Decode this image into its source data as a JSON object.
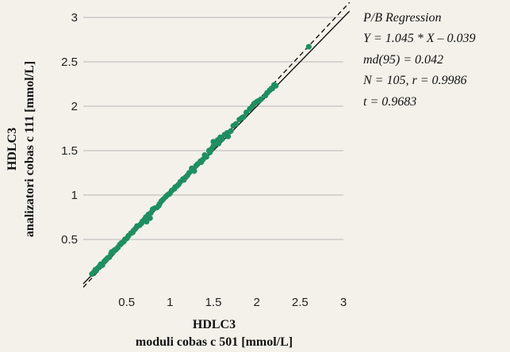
{
  "chart_data": {
    "type": "scatter",
    "xlabel": [
      "HDLC3",
      "moduli cobas c 501 [mmol/L]"
    ],
    "ylabel": [
      "HDLC3",
      "analizatori cobas c 111 [mmol/L]"
    ],
    "xlim": [
      0,
      3
    ],
    "ylim": [
      0,
      3
    ],
    "xticks": [
      "0.5",
      "1",
      "1.5",
      "2",
      "2.5",
      "3"
    ],
    "yticks": [
      "0.5",
      "1",
      "1.5",
      "2",
      "2.5",
      "3"
    ],
    "grid": "horizontal",
    "point_color": "#1f8f5f",
    "annotations": [
      "P/B Regression",
      "Y = 1.045 * X – 0.039",
      "md(95) = 0.042",
      "N = 105, r = 0.9986",
      "t = 0.9683"
    ],
    "lines": [
      {
        "style": "solid",
        "slope": 1,
        "intercept": 0
      },
      {
        "style": "dashed",
        "slope": 1.045,
        "intercept": -0.039
      }
    ],
    "points": [
      [
        0.1,
        0.11
      ],
      [
        0.12,
        0.13
      ],
      [
        0.15,
        0.15
      ],
      [
        0.17,
        0.18
      ],
      [
        0.19,
        0.2
      ],
      [
        0.2,
        0.22
      ],
      [
        0.22,
        0.21
      ],
      [
        0.24,
        0.25
      ],
      [
        0.26,
        0.27
      ],
      [
        0.28,
        0.29
      ],
      [
        0.3,
        0.3
      ],
      [
        0.32,
        0.34
      ],
      [
        0.34,
        0.35
      ],
      [
        0.36,
        0.38
      ],
      [
        0.38,
        0.39
      ],
      [
        0.4,
        0.41
      ],
      [
        0.42,
        0.44
      ],
      [
        0.44,
        0.46
      ],
      [
        0.46,
        0.47
      ],
      [
        0.48,
        0.5
      ],
      [
        0.5,
        0.51
      ],
      [
        0.52,
        0.54
      ],
      [
        0.55,
        0.57
      ],
      [
        0.58,
        0.6
      ],
      [
        0.6,
        0.62
      ],
      [
        0.62,
        0.65
      ],
      [
        0.65,
        0.66
      ],
      [
        0.68,
        0.7
      ],
      [
        0.7,
        0.72
      ],
      [
        0.72,
        0.75
      ],
      [
        0.73,
        0.7
      ],
      [
        0.75,
        0.78
      ],
      [
        0.78,
        0.8
      ],
      [
        0.8,
        0.84
      ],
      [
        0.82,
        0.85
      ],
      [
        0.85,
        0.86
      ],
      [
        0.88,
        0.9
      ],
      [
        0.9,
        0.93
      ],
      [
        0.92,
        0.95
      ],
      [
        0.95,
        0.98
      ],
      [
        0.97,
        1.0
      ],
      [
        1.0,
        1.02
      ],
      [
        1.02,
        1.05
      ],
      [
        1.05,
        1.07
      ],
      [
        1.08,
        1.1
      ],
      [
        1.1,
        1.12
      ],
      [
        1.12,
        1.15
      ],
      [
        1.15,
        1.18
      ],
      [
        1.18,
        1.2
      ],
      [
        1.2,
        1.22
      ],
      [
        1.22,
        1.25
      ],
      [
        1.25,
        1.3
      ],
      [
        1.28,
        1.27
      ],
      [
        1.3,
        1.33
      ],
      [
        1.32,
        1.35
      ],
      [
        1.35,
        1.38
      ],
      [
        1.38,
        1.4
      ],
      [
        1.4,
        1.45
      ],
      [
        1.42,
        1.43
      ],
      [
        1.45,
        1.5
      ],
      [
        1.48,
        1.52
      ],
      [
        1.5,
        1.55
      ],
      [
        1.5,
        1.6
      ],
      [
        1.52,
        1.57
      ],
      [
        1.55,
        1.62
      ],
      [
        1.58,
        1.65
      ],
      [
        1.6,
        1.63
      ],
      [
        1.63,
        1.68
      ],
      [
        1.66,
        1.7
      ],
      [
        1.7,
        1.72
      ],
      [
        1.73,
        1.78
      ],
      [
        1.76,
        1.8
      ],
      [
        1.8,
        1.85
      ],
      [
        1.85,
        1.88
      ],
      [
        1.88,
        1.93
      ],
      [
        1.92,
        1.97
      ],
      [
        1.95,
        2.0
      ],
      [
        1.97,
        2.03
      ],
      [
        2.0,
        2.05
      ],
      [
        2.05,
        2.08
      ],
      [
        2.1,
        2.12
      ],
      [
        2.12,
        2.15
      ],
      [
        2.15,
        2.18
      ],
      [
        2.18,
        2.2
      ],
      [
        2.2,
        2.24
      ],
      [
        2.22,
        2.23
      ],
      [
        2.6,
        2.67
      ],
      [
        0.14,
        0.16
      ],
      [
        0.33,
        0.36
      ],
      [
        0.47,
        0.48
      ],
      [
        0.57,
        0.58
      ],
      [
        0.67,
        0.68
      ],
      [
        0.77,
        0.74
      ],
      [
        0.87,
        0.88
      ],
      [
        0.99,
        1.01
      ],
      [
        1.06,
        1.09
      ],
      [
        1.16,
        1.17
      ],
      [
        1.26,
        1.28
      ],
      [
        1.36,
        1.37
      ],
      [
        1.46,
        1.48
      ],
      [
        1.56,
        1.58
      ],
      [
        1.67,
        1.66
      ],
      [
        1.83,
        1.87
      ],
      [
        2.02,
        2.06
      ],
      [
        2.17,
        2.2
      ]
    ]
  }
}
